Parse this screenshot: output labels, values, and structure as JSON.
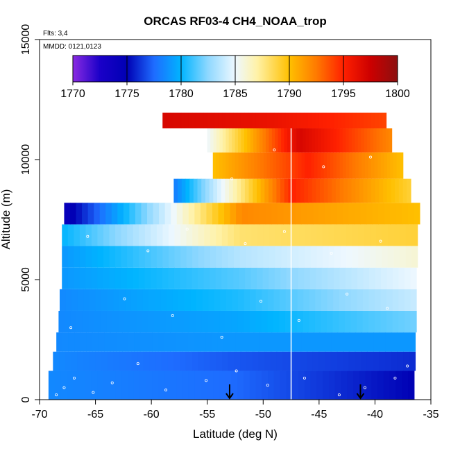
{
  "chart_data": {
    "type": "heatmap",
    "title": "ORCAS RF03-4 CH4_NOAA_trop",
    "flights_note": "Flts: 3,4",
    "date_note": "MMDD: 0121,0123",
    "xlabel": "Latitude (deg N)",
    "ylabel": "Altitude (m)",
    "xlim": [
      -70,
      -35
    ],
    "ylim": [
      0,
      15000
    ],
    "x_ticks": [
      -70,
      -65,
      -60,
      -55,
      -50,
      -45,
      -40,
      -35
    ],
    "y_ticks": [
      0,
      5000,
      10000,
      15000
    ],
    "x_tick_labels": [
      "-70",
      "-65",
      "-60",
      "-55",
      "-50",
      "-45",
      "-40",
      "-35"
    ],
    "y_tick_labels": [
      "0",
      "5000",
      "10000",
      "15000"
    ],
    "colorbar": {
      "range": [
        1770,
        1800
      ],
      "ticks": [
        1770,
        1775,
        1780,
        1785,
        1790,
        1795,
        1800
      ],
      "tick_labels": [
        "1770",
        "1775",
        "1780",
        "1785",
        "1790",
        "1795",
        "1800"
      ],
      "stops": [
        {
          "value": 1770,
          "color": "#8a2be2"
        },
        {
          "value": 1772.5,
          "color": "#1a00c8"
        },
        {
          "value": 1775,
          "color": "#0000b4"
        },
        {
          "value": 1777.5,
          "color": "#1e6cff"
        },
        {
          "value": 1780,
          "color": "#00b4ff"
        },
        {
          "value": 1782.5,
          "color": "#8fd8ff"
        },
        {
          "value": 1785,
          "color": "#eef8ff"
        },
        {
          "value": 1787,
          "color": "#fff2a8"
        },
        {
          "value": 1790,
          "color": "#ffc000"
        },
        {
          "value": 1792.5,
          "color": "#ff7a00"
        },
        {
          "value": 1795,
          "color": "#ff2000"
        },
        {
          "value": 1797.5,
          "color": "#cc0000"
        },
        {
          "value": 1800,
          "color": "#8b1010"
        }
      ]
    },
    "vertical_line_lat": -47.5,
    "arrows_lat": [
      -53,
      -41.3
    ],
    "curtain_layers": [
      {
        "alt_bottom": 0,
        "alt_top": 1200,
        "lat_start": -69.2,
        "lat_end": -36.5,
        "value_west": 1778.5,
        "value_mid": 1777.5,
        "value_east": 1775
      },
      {
        "alt_bottom": 1200,
        "alt_top": 2000,
        "lat_start": -68.8,
        "lat_end": -36.4,
        "value_west": 1778.5,
        "value_mid": 1777.0,
        "value_east": 1776
      },
      {
        "alt_bottom": 2000,
        "alt_top": 2800,
        "lat_start": -68.5,
        "lat_end": -36.4,
        "value_west": 1778.5,
        "value_mid": 1779.0,
        "value_east": 1779
      },
      {
        "alt_bottom": 2800,
        "alt_top": 3700,
        "lat_start": -68.3,
        "lat_end": -36.3,
        "value_west": 1778.5,
        "value_mid": 1779.5,
        "value_east": 1782
      },
      {
        "alt_bottom": 3700,
        "alt_top": 4600,
        "lat_start": -68.2,
        "lat_end": -36.3,
        "value_west": 1778.5,
        "value_mid": 1780.5,
        "value_east": 1784
      },
      {
        "alt_bottom": 4600,
        "alt_top": 5500,
        "lat_start": -68.0,
        "lat_end": -36.3,
        "value_west": 1779.0,
        "value_mid": 1781.5,
        "value_east": 1785
      },
      {
        "alt_bottom": 5500,
        "alt_top": 6400,
        "lat_start": -68.0,
        "lat_end": -36.2,
        "value_west": 1779.0,
        "value_mid": 1783.5,
        "value_east": 1786
      },
      {
        "alt_bottom": 6400,
        "alt_top": 7300,
        "lat_start": -68.0,
        "lat_end": -36.2,
        "value_west": 1780.0,
        "value_mid": 1788.0,
        "value_east": 1789
      },
      {
        "alt_bottom": 7300,
        "alt_top": 8200,
        "lat_start": -67.8,
        "lat_end": -36.0,
        "value_west": 1774.0,
        "value_mid": 1792.0,
        "value_east": 1790
      },
      {
        "alt_bottom": 8200,
        "alt_top": 9200,
        "lat_start": -58.0,
        "lat_end": -36.8,
        "value_west": 1778.0,
        "value_mid": 1795.0,
        "value_east": 1789
      },
      {
        "alt_bottom": 9200,
        "alt_top": 10300,
        "lat_start": -54.5,
        "lat_end": -37.5,
        "value_west": 1790.0,
        "value_mid": 1795.0,
        "value_east": 1790
      },
      {
        "alt_bottom": 10300,
        "alt_top": 11300,
        "lat_start": -55.0,
        "lat_end": -38.5,
        "value_west": 1785.0,
        "value_mid": 1797.0,
        "value_east": 1792
      },
      {
        "alt_bottom": 11300,
        "alt_top": 11950,
        "lat_start": -59.0,
        "lat_end": -39.0,
        "value_west": 1797.0,
        "value_mid": 1796.0,
        "value_east": 1794
      }
    ],
    "sample_points": [
      [
        -68.5,
        200
      ],
      [
        -67.8,
        500
      ],
      [
        -66.9,
        900
      ],
      [
        -65.2,
        300
      ],
      [
        -63.5,
        700
      ],
      [
        -61.2,
        1500
      ],
      [
        -58.7,
        400
      ],
      [
        -55.1,
        800
      ],
      [
        -52.4,
        1200
      ],
      [
        -49.6,
        600
      ],
      [
        -46.3,
        900
      ],
      [
        -43.2,
        200
      ],
      [
        -40.9,
        500
      ],
      [
        -38.2,
        900
      ],
      [
        -37.1,
        1400
      ],
      [
        -67.2,
        3000
      ],
      [
        -62.4,
        4200
      ],
      [
        -58.1,
        3500
      ],
      [
        -53.7,
        2600
      ],
      [
        -50.2,
        4100
      ],
      [
        -46.8,
        3300
      ],
      [
        -42.5,
        4400
      ],
      [
        -38.9,
        3800
      ],
      [
        -65.7,
        6800
      ],
      [
        -60.3,
        6200
      ],
      [
        -56.8,
        7100
      ],
      [
        -51.6,
        6500
      ],
      [
        -48.1,
        7000
      ],
      [
        -43.9,
        6100
      ],
      [
        -39.5,
        6600
      ],
      [
        -52.8,
        9200
      ],
      [
        -49.0,
        10400
      ],
      [
        -44.6,
        9700
      ],
      [
        -40.4,
        10100
      ]
    ]
  }
}
